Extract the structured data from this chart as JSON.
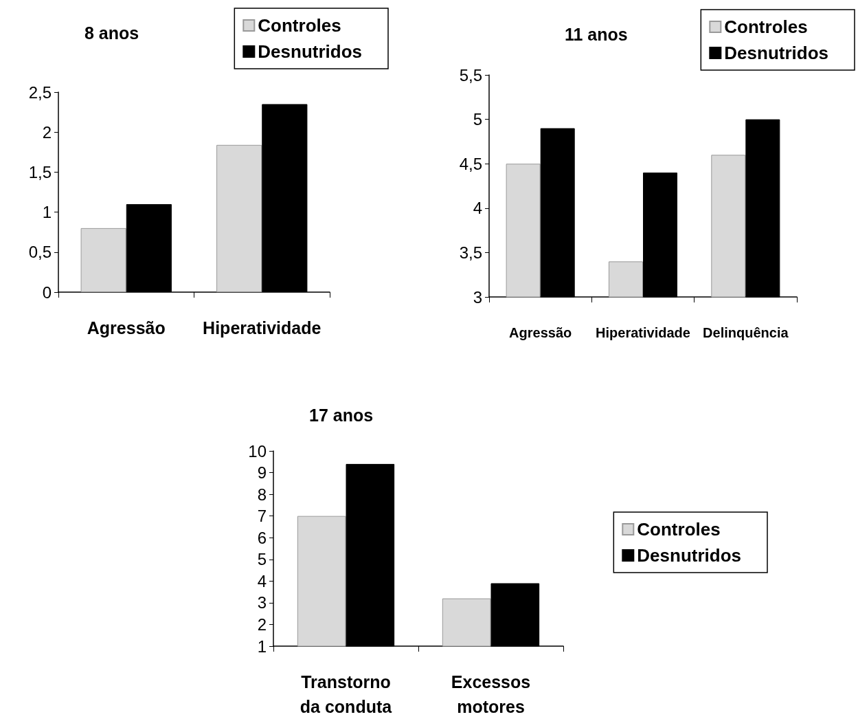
{
  "chart_data": [
    {
      "type": "bar",
      "title": "8 anos",
      "categories": [
        "Agressão",
        "Hiperatividade"
      ],
      "series": [
        {
          "name": "Controles",
          "color": "#d9d9d9",
          "values": [
            0.8,
            1.84
          ]
        },
        {
          "name": "Desnutridos",
          "color": "#000000",
          "values": [
            1.1,
            2.35
          ]
        }
      ],
      "ylim": [
        0,
        2.5
      ],
      "yticks": [
        0,
        {
          "value": 0.5,
          "label": "0,5"
        },
        1,
        {
          "value": 1.5,
          "label": "1,5"
        },
        2,
        {
          "value": 2.5,
          "label": "2,5"
        }
      ],
      "grid": false,
      "legend": "top right"
    },
    {
      "type": "bar",
      "title": "11 anos",
      "categories": [
        "Agressão",
        "Hiperatividade",
        "Delinquência"
      ],
      "series": [
        {
          "name": "Controles",
          "color": "#d9d9d9",
          "values": [
            4.5,
            3.4,
            4.6
          ]
        },
        {
          "name": "Desnutridos",
          "color": "#000000",
          "values": [
            4.9,
            4.4,
            5.0
          ]
        }
      ],
      "ylim": [
        3,
        5.5
      ],
      "yticks": [
        3,
        {
          "value": 3.5,
          "label": "3,5"
        },
        4,
        {
          "value": 4.5,
          "label": "4,5"
        },
        5,
        {
          "value": 5.5,
          "label": "5,5"
        }
      ],
      "grid": false,
      "legend": "top right"
    },
    {
      "type": "bar",
      "title": "17 anos",
      "categories": [
        "Transtorno\nda conduta",
        "Excessos\nmotores"
      ],
      "series": [
        {
          "name": "Controles",
          "color": "#d9d9d9",
          "values": [
            7.0,
            3.2
          ]
        },
        {
          "name": "Desnutridos",
          "color": "#000000",
          "values": [
            9.4,
            3.9
          ]
        }
      ],
      "ylim": [
        1,
        10
      ],
      "yticks": [
        1,
        2,
        3,
        4,
        5,
        6,
        7,
        8,
        9,
        10
      ],
      "grid": false,
      "legend": "right"
    }
  ]
}
